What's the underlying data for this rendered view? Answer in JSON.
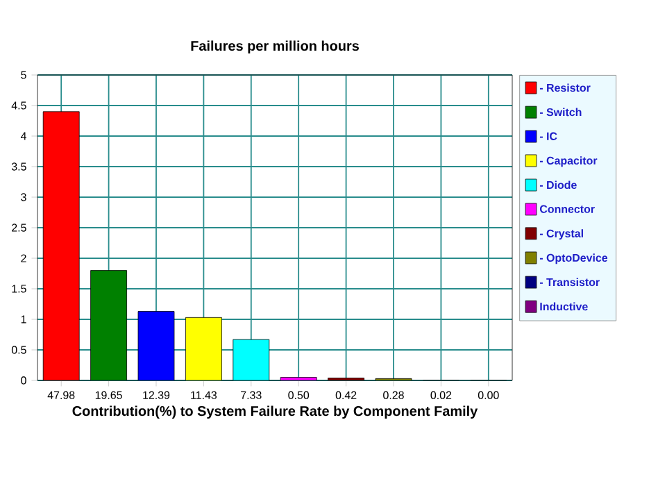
{
  "chart_data": {
    "type": "bar",
    "title": "Failures per million hours",
    "xlabel": "Contribution(%) to System Failure Rate by Component Family",
    "categories": [
      "47.98",
      "19.65",
      "12.39",
      "11.43",
      "7.33",
      "0.50",
      "0.42",
      "0.28",
      "0.02",
      "0.00"
    ],
    "series": [
      {
        "name": "- Resistor",
        "color": "#ff0000",
        "values": [
          4.4,
          null,
          null,
          null,
          null,
          null,
          null,
          null,
          null,
          null
        ]
      },
      {
        "name": "- Switch",
        "color": "#008000",
        "values": [
          null,
          1.8,
          null,
          null,
          null,
          null,
          null,
          null,
          null,
          null
        ]
      },
      {
        "name": "- IC",
        "color": "#0000ff",
        "values": [
          null,
          null,
          1.13,
          null,
          null,
          null,
          null,
          null,
          null,
          null
        ]
      },
      {
        "name": "- Capacitor",
        "color": "#ffff00",
        "values": [
          null,
          null,
          null,
          1.03,
          null,
          null,
          null,
          null,
          null,
          null
        ]
      },
      {
        "name": "- Diode",
        "color": "#00ffff",
        "values": [
          null,
          null,
          null,
          null,
          0.67,
          null,
          null,
          null,
          null,
          null
        ]
      },
      {
        "name": "Connector",
        "color": "#ff00ff",
        "values": [
          null,
          null,
          null,
          null,
          null,
          0.05,
          null,
          null,
          null,
          null
        ]
      },
      {
        "name": "- Crystal",
        "color": "#800000",
        "values": [
          null,
          null,
          null,
          null,
          null,
          null,
          0.04,
          null,
          null,
          null
        ]
      },
      {
        "name": "- OptoDevice",
        "color": "#808000",
        "values": [
          null,
          null,
          null,
          null,
          null,
          null,
          null,
          0.03,
          null,
          null
        ]
      },
      {
        "name": "- Transistor",
        "color": "#000080",
        "values": [
          null,
          null,
          null,
          null,
          null,
          null,
          null,
          null,
          0,
          null
        ]
      },
      {
        "name": "Inductive",
        "color": "#800080",
        "values": [
          null,
          null,
          null,
          null,
          null,
          null,
          null,
          null,
          null,
          0
        ]
      }
    ],
    "ylim": [
      0,
      5
    ],
    "yticks": [
      0,
      0.5,
      1,
      1.5,
      2,
      2.5,
      3,
      3.5,
      4,
      4.5,
      5
    ],
    "grid": true,
    "legend": "right"
  }
}
